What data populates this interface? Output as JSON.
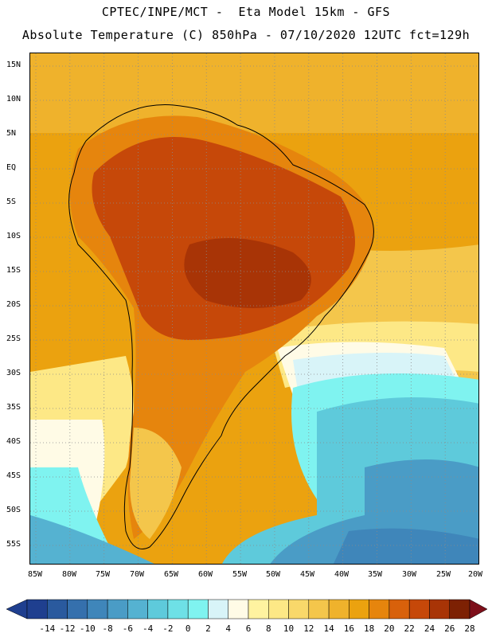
{
  "header": {
    "line1": "CPTEC/INPE/MCT -  Eta Model 15km - GFS",
    "line2": "Absolute Temperature (C) 850hPa - 07/10/2020 12UTC fct=129h"
  },
  "axes": {
    "lat_labels": [
      "15N",
      "10N",
      "5N",
      "EQ",
      "5S",
      "10S",
      "15S",
      "20S",
      "25S",
      "30S",
      "35S",
      "40S",
      "45S",
      "50S",
      "55S"
    ],
    "lon_labels": [
      "85W",
      "80W",
      "75W",
      "70W",
      "65W",
      "60W",
      "55W",
      "50W",
      "45W",
      "40W",
      "35W",
      "30W",
      "25W",
      "20W"
    ]
  },
  "colorbar": {
    "labels": [
      "-14",
      "-12",
      "-10",
      "-8",
      "-6",
      "-4",
      "-2",
      "0",
      "2",
      "4",
      "6",
      "8",
      "10",
      "12",
      "14",
      "16",
      "18",
      "20",
      "22",
      "24",
      "26",
      "28"
    ],
    "colors": [
      "#1f3f8f",
      "#2a5a9e",
      "#3570ad",
      "#3f86ba",
      "#4a9cc6",
      "#55b2d1",
      "#5ecadb",
      "#6ee0e6",
      "#7ff3f0",
      "#d8f4f8",
      "#fffbe6",
      "#fff3a0",
      "#fde886",
      "#f9d86a",
      "#f4c64b",
      "#efb22c",
      "#eba20f",
      "#e6850d",
      "#d8610b",
      "#c64809",
      "#a83406",
      "#7d2103"
    ]
  },
  "chart_data": {
    "type": "heatmap",
    "variable": "Absolute Temperature (C) 850hPa",
    "units": "C",
    "x_range_degrees": [
      -86,
      -20
    ],
    "y_range_degrees": [
      -57,
      16
    ],
    "levels": [
      -14,
      -12,
      -10,
      -8,
      -6,
      -4,
      -2,
      0,
      2,
      4,
      6,
      8,
      10,
      12,
      14,
      16,
      18,
      20,
      22,
      24,
      26,
      28
    ]
  }
}
